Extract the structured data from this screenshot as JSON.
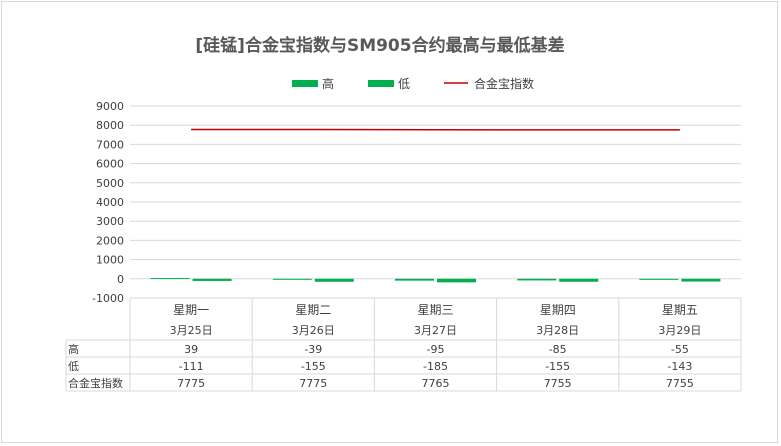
{
  "chart_data": {
    "type": "bar",
    "title": "[硅锰]合金宝指数与SM905合约最高与最低基差",
    "categories": [
      "星期一",
      "星期二",
      "星期三",
      "星期四",
      "星期五"
    ],
    "dates": [
      "3月25日",
      "3月26日",
      "3月27日",
      "3月28日",
      "3月29日"
    ],
    "series": [
      {
        "name": "高",
        "kind": "bar",
        "color": "#00b050",
        "values": [
          39,
          -39,
          -95,
          -85,
          -55
        ]
      },
      {
        "name": "低",
        "kind": "bar",
        "color": "#00b050",
        "values": [
          -111,
          -155,
          -185,
          -155,
          -143
        ]
      },
      {
        "name": "合金宝指数",
        "kind": "line",
        "color": "#c00000",
        "values": [
          7775,
          7775,
          7765,
          7755,
          7755
        ]
      }
    ],
    "ylim": [
      -1000,
      9000
    ],
    "yticks": [
      -1000,
      0,
      1000,
      2000,
      3000,
      4000,
      5000,
      6000,
      7000,
      8000,
      9000
    ],
    "legend_position": "top",
    "grid": true,
    "data_table": true
  }
}
